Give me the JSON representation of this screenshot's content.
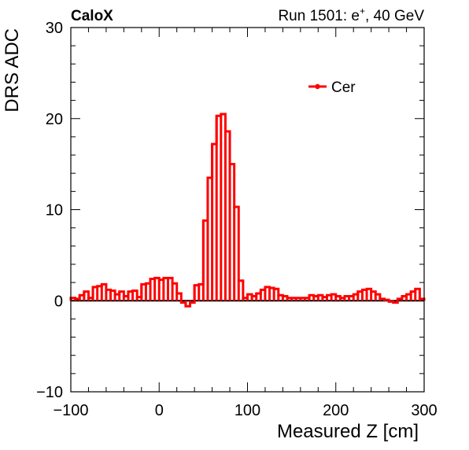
{
  "header": {
    "brand": "CaloX",
    "run_info_prefix": "Run 1501: e",
    "run_info_sup": "+",
    "run_info_suffix": ", 40 GeV"
  },
  "chart_data": {
    "type": "line",
    "drawstyle": "steps",
    "xlabel": "Measured Z [cm]",
    "ylabel": "DRS ADC",
    "xlim": [
      -100,
      300
    ],
    "ylim": [
      -10,
      30
    ],
    "x_ticks": [
      -100,
      0,
      100,
      200,
      300
    ],
    "y_ticks": [
      -10,
      0,
      10,
      20,
      30
    ],
    "x_tick_labels": [
      "−100",
      "0",
      "100",
      "200",
      "300"
    ],
    "y_tick_labels": [
      "−10",
      "0",
      "10",
      "20",
      "30"
    ],
    "reference_line_y": 0,
    "legend": {
      "placement": "top-right",
      "entries": [
        "Cer"
      ]
    },
    "colors": {
      "series": "#ff0000",
      "axis": "#000000",
      "zero_line": "#000000"
    },
    "bin_width": 5,
    "series": [
      {
        "name": "Cer",
        "x_bin_lows": [
          -100,
          -95,
          -90,
          -85,
          -80,
          -75,
          -70,
          -65,
          -60,
          -55,
          -50,
          -45,
          -40,
          -35,
          -30,
          -25,
          -20,
          -15,
          -10,
          -5,
          0,
          5,
          10,
          15,
          20,
          25,
          30,
          35,
          40,
          45,
          50,
          55,
          60,
          65,
          70,
          75,
          80,
          85,
          90,
          95,
          100,
          105,
          110,
          115,
          120,
          125,
          130,
          135,
          140,
          145,
          150,
          155,
          160,
          165,
          170,
          175,
          180,
          185,
          190,
          195,
          200,
          205,
          210,
          215,
          220,
          225,
          230,
          235,
          240,
          245,
          250,
          255,
          260,
          265,
          270,
          275,
          280,
          285,
          290,
          295
        ],
        "values": [
          0.3,
          0.2,
          0.6,
          1.0,
          0.3,
          1.5,
          1.6,
          1.8,
          1.2,
          1.1,
          0.7,
          1.0,
          0.5,
          1.0,
          1.1,
          0.4,
          1.8,
          1.9,
          2.4,
          2.5,
          2.3,
          2.5,
          2.5,
          1.9,
          0.8,
          -0.2,
          -0.6,
          -0.2,
          1.7,
          1.8,
          8.8,
          13.5,
          17.2,
          20.3,
          20.5,
          18.6,
          15.0,
          10.3,
          2.2,
          0.3,
          0.7,
          0.5,
          0.8,
          1.2,
          1.5,
          1.4,
          1.3,
          0.6,
          0.5,
          0.3,
          0.3,
          0.3,
          0.3,
          0.3,
          0.6,
          0.5,
          0.6,
          0.4,
          0.6,
          0.7,
          0.5,
          0.3,
          0.5,
          0.5,
          0.7,
          1.0,
          1.2,
          1.3,
          1.0,
          0.7,
          0.2,
          0.1,
          -0.1,
          -0.2,
          0.2,
          0.5,
          0.7,
          1.0,
          1.3,
          0.2
        ]
      }
    ]
  }
}
